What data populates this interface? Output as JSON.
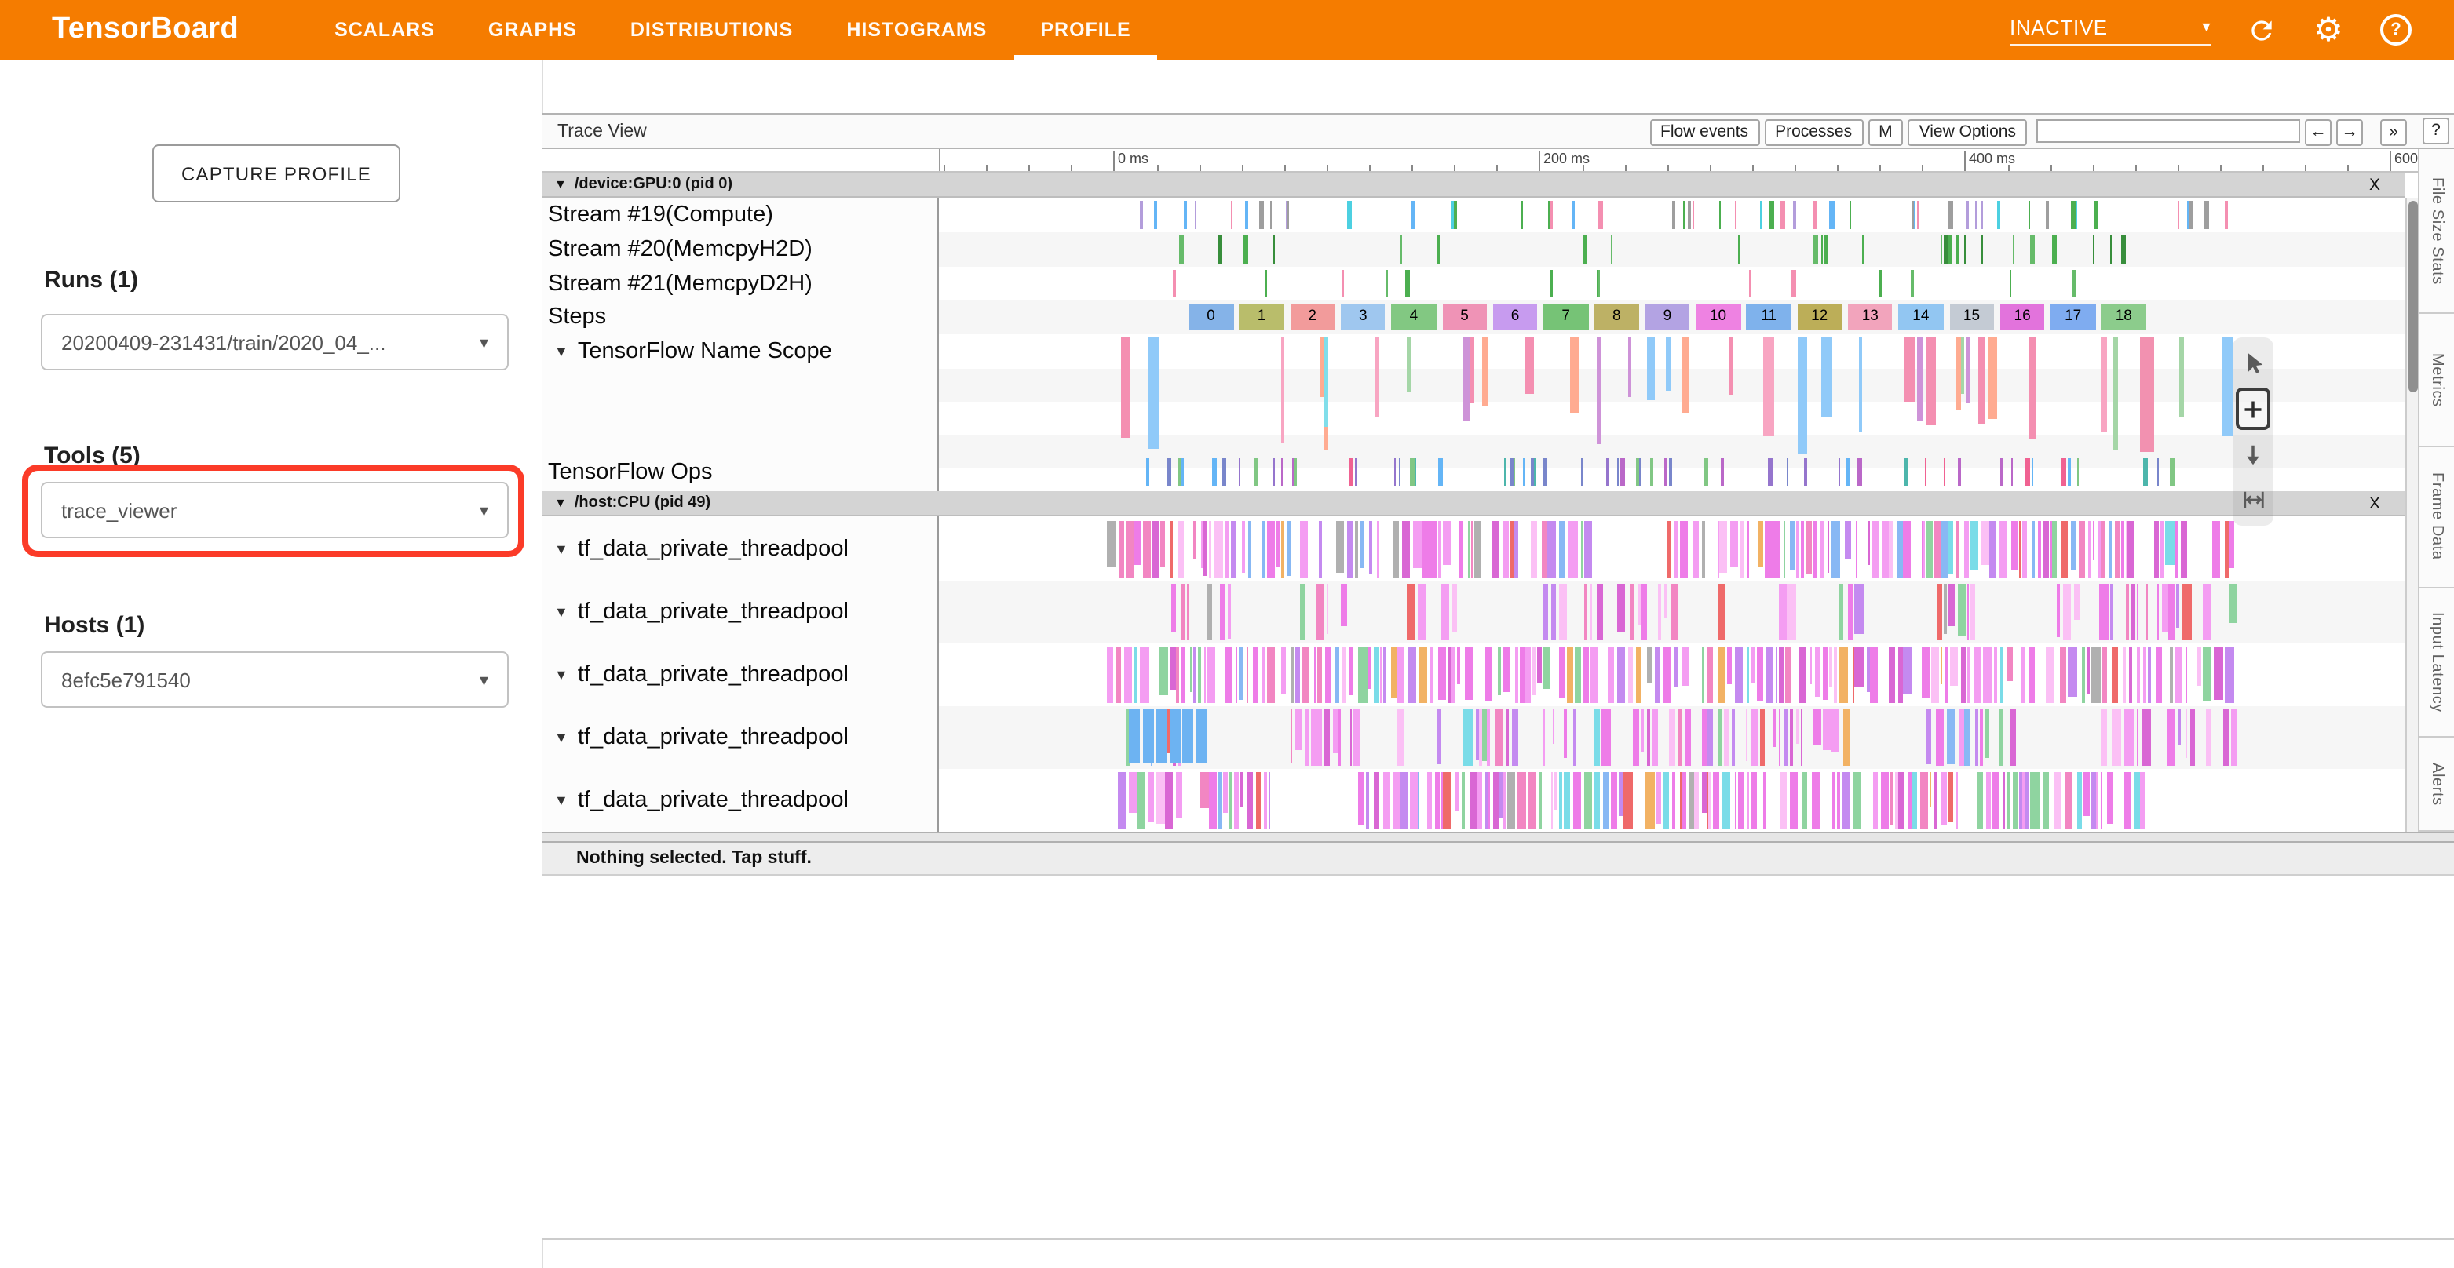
{
  "topbar": {
    "title": "TensorBoard",
    "brand_color": "#f57c00",
    "tabs": [
      {
        "label": "SCALARS",
        "active": false
      },
      {
        "label": "GRAPHS",
        "active": false
      },
      {
        "label": "DISTRIBUTIONS",
        "active": false
      },
      {
        "label": "HISTOGRAMS",
        "active": false
      },
      {
        "label": "PROFILE",
        "active": true
      }
    ],
    "status_dropdown": "INACTIVE"
  },
  "sidebar": {
    "capture_button": "CAPTURE PROFILE",
    "runs": {
      "label": "Runs (1)",
      "selected": "20200409-231431/train/2020_04_..."
    },
    "tools": {
      "label": "Tools (5)",
      "selected": "trace_viewer",
      "highlight_color": "#fb3b28"
    },
    "hosts": {
      "label": "Hosts (1)",
      "selected": "8efc5e791540"
    }
  },
  "trace_viewer": {
    "title": "Trace View",
    "toolbar_buttons": [
      "Flow events",
      "Processes",
      "M",
      "View Options"
    ],
    "nav_buttons": [
      "←",
      "→",
      "»"
    ],
    "help_button": "?",
    "ruler_labels": [
      "0 ms",
      "200 ms",
      "400 ms",
      "600"
    ],
    "gpu_section": {
      "title": "/device:GPU:0 (pid 0)",
      "close_label": "X",
      "rows": [
        "Stream #19(Compute)",
        "Stream #20(MemcpyH2D)",
        "Stream #21(MemcpyD2H)",
        "Steps",
        "TensorFlow Name Scope",
        "TensorFlow Ops"
      ]
    },
    "steps": [
      {
        "label": "0",
        "color": "#85b3e8"
      },
      {
        "label": "1",
        "color": "#b9bd6b"
      },
      {
        "label": "2",
        "color": "#f29b9b"
      },
      {
        "label": "3",
        "color": "#9fc7ef"
      },
      {
        "label": "4",
        "color": "#82c882"
      },
      {
        "label": "5",
        "color": "#ef93b6"
      },
      {
        "label": "6",
        "color": "#c79bef"
      },
      {
        "label": "7",
        "color": "#76c376"
      },
      {
        "label": "8",
        "color": "#bdb165"
      },
      {
        "label": "9",
        "color": "#b3a3e3"
      },
      {
        "label": "10",
        "color": "#ee82e2"
      },
      {
        "label": "11",
        "color": "#7fb2ec"
      },
      {
        "label": "12",
        "color": "#bcae58"
      },
      {
        "label": "13",
        "color": "#f2a4bc"
      },
      {
        "label": "14",
        "color": "#92c6f2"
      },
      {
        "label": "15",
        "color": "#c4cbd4"
      },
      {
        "label": "16",
        "color": "#e273dc"
      },
      {
        "label": "17",
        "color": "#7facf0"
      },
      {
        "label": "18",
        "color": "#8ccc8c"
      }
    ],
    "cpu_section": {
      "title": "/host:CPU (pid 49)",
      "close_label": "X",
      "rows": [
        "tf_data_private_threadpool",
        "tf_data_private_threadpool",
        "tf_data_private_threadpool",
        "tf_data_private_threadpool",
        "tf_data_private_threadpool"
      ]
    },
    "side_tabs": [
      "File Size Stats",
      "Metrics",
      "Frame Data",
      "Input Latency",
      "Alerts"
    ],
    "bottom_message": "Nothing selected. Tap stuff."
  },
  "colors": {
    "gpu_ticks": [
      "#64b5f6",
      "#4caf50",
      "#f48fb1",
      "#9e9e9e",
      "#b39ddb",
      "#4dd0e1"
    ],
    "memcpy_h2d": [
      "#4caf50",
      "#66bb6a",
      "#388e3c"
    ],
    "memcpy_d2h": [
      "#4caf50",
      "#f48fb1",
      "#66bb6a"
    ],
    "name_scope": [
      "#f8a5c2",
      "#90caf9",
      "#a5d6a7",
      "#ce93d8",
      "#ffab91",
      "#80deea",
      "#f48fb1"
    ],
    "tf_ops": [
      "#7986cb",
      "#64b5f6",
      "#ba68c8",
      "#4db6ac",
      "#f06292",
      "#9575cd",
      "#81c784"
    ],
    "cpu_weighted": [
      [
        "#ee7ce8",
        22
      ],
      [
        "#f49df2",
        18
      ],
      [
        "#d967d4",
        12
      ],
      [
        "#c48af0",
        10
      ],
      [
        "#fbc0f5",
        8
      ],
      [
        "#f286c2",
        8
      ],
      [
        "#8fd4a0",
        5
      ],
      [
        "#88b8f4",
        5
      ],
      [
        "#f2b264",
        4
      ],
      [
        "#7adce8",
        3
      ],
      [
        "#ef6a6a",
        3
      ],
      [
        "#b0b0b0",
        2
      ]
    ]
  }
}
